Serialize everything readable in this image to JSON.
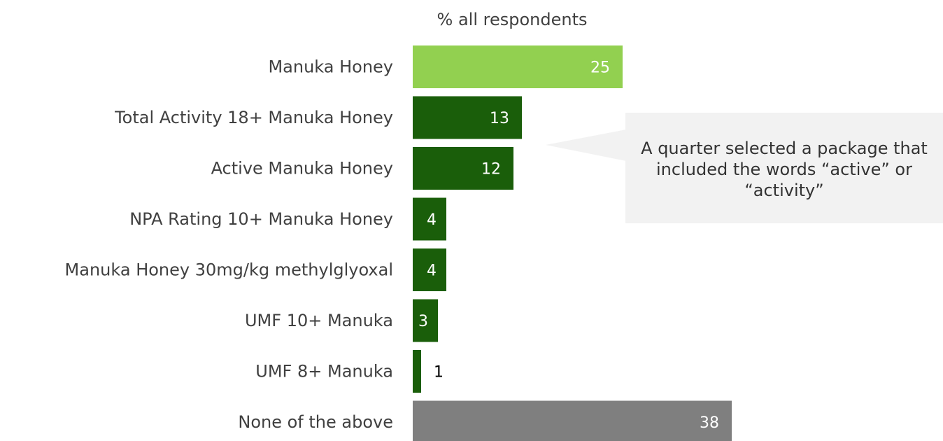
{
  "chart_data": {
    "type": "bar",
    "orientation": "horizontal",
    "title": "% all respondents",
    "categories": [
      "Manuka Honey",
      "Total Activity 18+ Manuka Honey",
      "Active Manuka Honey",
      "NPA Rating 10+ Manuka Honey",
      "Manuka Honey 30mg/kg methylglyoxal",
      "UMF 10+ Manuka",
      "UMF 8+ Manuka",
      "None of the above"
    ],
    "values": [
      25,
      13,
      12,
      4,
      4,
      3,
      1,
      38
    ],
    "bar_colors": [
      "#92d050",
      "#1a5e0a",
      "#1a5e0a",
      "#1a5e0a",
      "#1a5e0a",
      "#1a5e0a",
      "#1a5e0a",
      "#7f7f7f"
    ],
    "grid": false,
    "annotation": "A quarter selected a package that included the words “active” or “activity”"
  }
}
